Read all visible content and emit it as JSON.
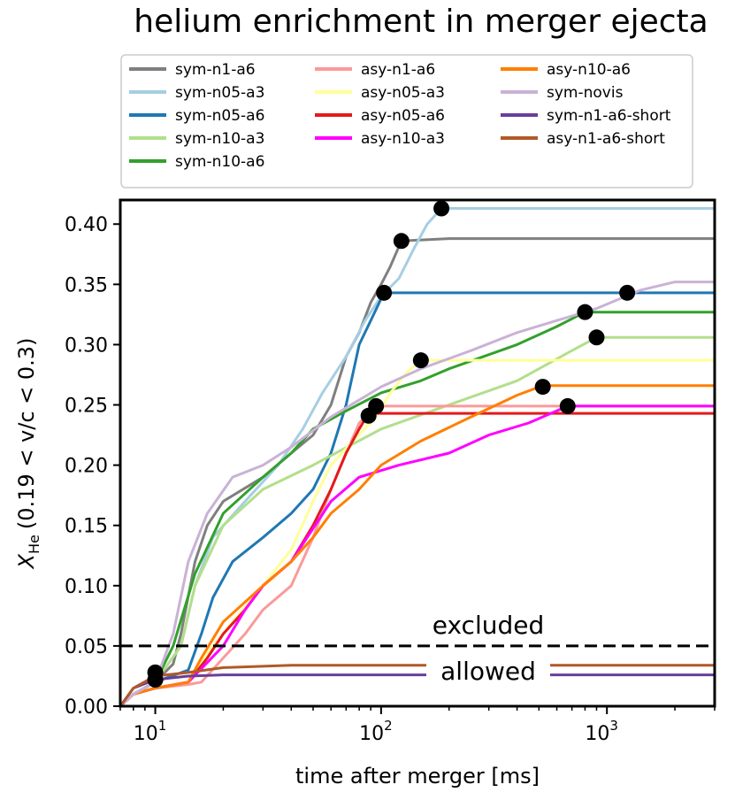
{
  "chart_data": {
    "type": "line",
    "title": "helium enrichment in merger ejecta",
    "xlabel": "time after merger [ms]",
    "ylabel_main": "X",
    "ylabel_sub": "He",
    "ylabel_rest": "(0.19 < v/c < 0.3)",
    "xscale": "log",
    "xlim": [
      7,
      3000
    ],
    "ylim": [
      0,
      0.42
    ],
    "xticks": [
      {
        "value": 10,
        "label": "10",
        "exp": "1"
      },
      {
        "value": 100,
        "label": "10",
        "exp": "2"
      },
      {
        "value": 1000,
        "label": "10",
        "exp": "3"
      }
    ],
    "yticks": [
      "0.00",
      "0.05",
      "0.10",
      "0.15",
      "0.20",
      "0.25",
      "0.30",
      "0.35",
      "0.40"
    ],
    "threshold": {
      "value": 0.05,
      "label_above": "excluded",
      "label_below": "allowed"
    },
    "legend_position": "above plot",
    "series": [
      {
        "name": "sym-n1-a6",
        "color": "#7f7f7f",
        "points": [
          [
            7,
            0
          ],
          [
            8,
            0.01
          ],
          [
            10,
            0.02
          ],
          [
            12,
            0.035
          ],
          [
            13,
            0.06
          ],
          [
            15,
            0.12
          ],
          [
            17,
            0.15
          ],
          [
            20,
            0.17
          ],
          [
            30,
            0.19
          ],
          [
            40,
            0.21
          ],
          [
            50,
            0.225
          ],
          [
            60,
            0.25
          ],
          [
            70,
            0.29
          ],
          [
            80,
            0.31
          ],
          [
            90,
            0.335
          ],
          [
            100,
            0.35
          ],
          [
            110,
            0.365
          ],
          [
            123,
            0.386
          ],
          [
            200,
            0.388
          ],
          [
            3000,
            0.388
          ]
        ],
        "marker": [
          123,
          0.386
        ]
      },
      {
        "name": "sym-n05-a3",
        "color": "#a6cee3",
        "points": [
          [
            7,
            0
          ],
          [
            8,
            0.01
          ],
          [
            10,
            0.02
          ],
          [
            13,
            0.05
          ],
          [
            15,
            0.1
          ],
          [
            18,
            0.14
          ],
          [
            25,
            0.17
          ],
          [
            35,
            0.2
          ],
          [
            45,
            0.23
          ],
          [
            55,
            0.26
          ],
          [
            70,
            0.29
          ],
          [
            85,
            0.32
          ],
          [
            100,
            0.34
          ],
          [
            120,
            0.355
          ],
          [
            140,
            0.38
          ],
          [
            160,
            0.4
          ],
          [
            185,
            0.413
          ],
          [
            3000,
            0.413
          ]
        ],
        "marker": [
          185,
          0.413
        ]
      },
      {
        "name": "sym-n05-a6",
        "color": "#1f78b4",
        "points": [
          [
            7,
            0
          ],
          [
            8,
            0.01
          ],
          [
            10,
            0.02
          ],
          [
            14,
            0.03
          ],
          [
            16,
            0.06
          ],
          [
            18,
            0.09
          ],
          [
            22,
            0.12
          ],
          [
            30,
            0.14
          ],
          [
            40,
            0.16
          ],
          [
            50,
            0.18
          ],
          [
            60,
            0.21
          ],
          [
            70,
            0.25
          ],
          [
            80,
            0.3
          ],
          [
            90,
            0.32
          ],
          [
            103,
            0.343
          ],
          [
            3000,
            0.343
          ]
        ],
        "marker": [
          103,
          0.343
        ]
      },
      {
        "name": "sym-n10-a3",
        "color": "#b2df8a",
        "points": [
          [
            7,
            0
          ],
          [
            8,
            0.01
          ],
          [
            10,
            0.02
          ],
          [
            13,
            0.05
          ],
          [
            15,
            0.1
          ],
          [
            20,
            0.15
          ],
          [
            30,
            0.18
          ],
          [
            50,
            0.2
          ],
          [
            100,
            0.23
          ],
          [
            200,
            0.25
          ],
          [
            400,
            0.27
          ],
          [
            700,
            0.295
          ],
          [
            900,
            0.306
          ],
          [
            3000,
            0.306
          ]
        ],
        "marker": [
          900,
          0.306
        ]
      },
      {
        "name": "sym-n10-a6",
        "color": "#33a02c",
        "points": [
          [
            7,
            0
          ],
          [
            8,
            0.01
          ],
          [
            10,
            0.02
          ],
          [
            12,
            0.05
          ],
          [
            15,
            0.11
          ],
          [
            20,
            0.16
          ],
          [
            30,
            0.19
          ],
          [
            40,
            0.21
          ],
          [
            50,
            0.23
          ],
          [
            70,
            0.245
          ],
          [
            100,
            0.26
          ],
          [
            150,
            0.27
          ],
          [
            200,
            0.28
          ],
          [
            400,
            0.3
          ],
          [
            600,
            0.315
          ],
          [
            800,
            0.327
          ],
          [
            3000,
            0.327
          ]
        ],
        "marker": [
          800,
          0.327
        ]
      },
      {
        "name": "asy-n1-a6",
        "color": "#fb9a99",
        "points": [
          [
            7,
            0
          ],
          [
            8,
            0.01
          ],
          [
            10,
            0.015
          ],
          [
            14,
            0.018
          ],
          [
            16,
            0.02
          ],
          [
            20,
            0.04
          ],
          [
            25,
            0.06
          ],
          [
            30,
            0.08
          ],
          [
            40,
            0.1
          ],
          [
            50,
            0.14
          ],
          [
            60,
            0.18
          ],
          [
            70,
            0.21
          ],
          [
            80,
            0.235
          ],
          [
            95,
            0.249
          ],
          [
            3000,
            0.249
          ]
        ],
        "marker": null
      },
      {
        "name": "asy-n05-a3",
        "color": "#ffff99",
        "points": [
          [
            7,
            0
          ],
          [
            8,
            0.01
          ],
          [
            10,
            0.015
          ],
          [
            14,
            0.02
          ],
          [
            18,
            0.05
          ],
          [
            22,
            0.07
          ],
          [
            30,
            0.1
          ],
          [
            40,
            0.13
          ],
          [
            50,
            0.17
          ],
          [
            60,
            0.2
          ],
          [
            75,
            0.22
          ],
          [
            95,
            0.24
          ],
          [
            110,
            0.26
          ],
          [
            130,
            0.277
          ],
          [
            150,
            0.287
          ],
          [
            3000,
            0.287
          ]
        ],
        "marker": [
          150,
          0.287
        ]
      },
      {
        "name": "asy-n05-a6",
        "color": "#e31a1c",
        "points": [
          [
            7,
            0
          ],
          [
            8,
            0.01
          ],
          [
            10,
            0.015
          ],
          [
            14,
            0.02
          ],
          [
            17,
            0.04
          ],
          [
            20,
            0.06
          ],
          [
            25,
            0.08
          ],
          [
            30,
            0.1
          ],
          [
            40,
            0.12
          ],
          [
            50,
            0.15
          ],
          [
            60,
            0.18
          ],
          [
            70,
            0.21
          ],
          [
            80,
            0.23
          ],
          [
            88,
            0.243
          ],
          [
            3000,
            0.243
          ]
        ],
        "marker": [
          88,
          0.241
        ]
      },
      {
        "name": "asy-n10-a3",
        "color": "#ff00ff",
        "points": [
          [
            7,
            0
          ],
          [
            8,
            0.01
          ],
          [
            10,
            0.015
          ],
          [
            14,
            0.02
          ],
          [
            20,
            0.05
          ],
          [
            25,
            0.08
          ],
          [
            30,
            0.1
          ],
          [
            40,
            0.12
          ],
          [
            60,
            0.17
          ],
          [
            80,
            0.19
          ],
          [
            120,
            0.2
          ],
          [
            200,
            0.21
          ],
          [
            300,
            0.225
          ],
          [
            450,
            0.235
          ],
          [
            600,
            0.245
          ],
          [
            670,
            0.249
          ],
          [
            3000,
            0.249
          ]
        ],
        "marker": [
          670,
          0.249
        ]
      },
      {
        "name": "asy-n10-a6",
        "color": "#ff7f00",
        "points": [
          [
            7,
            0
          ],
          [
            8,
            0.01
          ],
          [
            10,
            0.015
          ],
          [
            14,
            0.02
          ],
          [
            16,
            0.04
          ],
          [
            20,
            0.07
          ],
          [
            30,
            0.1
          ],
          [
            40,
            0.12
          ],
          [
            50,
            0.14
          ],
          [
            60,
            0.16
          ],
          [
            80,
            0.18
          ],
          [
            100,
            0.2
          ],
          [
            150,
            0.22
          ],
          [
            250,
            0.24
          ],
          [
            400,
            0.258
          ],
          [
            520,
            0.266
          ],
          [
            3000,
            0.266
          ]
        ],
        "marker": [
          520,
          0.265
        ]
      },
      {
        "name": "sym-novis",
        "color": "#cab2d6",
        "points": [
          [
            7,
            0
          ],
          [
            8,
            0.01
          ],
          [
            10,
            0.02
          ],
          [
            12,
            0.06
          ],
          [
            14,
            0.12
          ],
          [
            17,
            0.16
          ],
          [
            22,
            0.19
          ],
          [
            30,
            0.2
          ],
          [
            40,
            0.215
          ],
          [
            60,
            0.24
          ],
          [
            100,
            0.265
          ],
          [
            150,
            0.28
          ],
          [
            250,
            0.295
          ],
          [
            400,
            0.31
          ],
          [
            600,
            0.32
          ],
          [
            900,
            0.33
          ],
          [
            1400,
            0.345
          ],
          [
            2000,
            0.352
          ],
          [
            3000,
            0.352
          ]
        ],
        "marker": [
          1230,
          0.343
        ]
      },
      {
        "name": "sym-n1-a6-short",
        "color": "#6a3d9a",
        "points": [
          [
            7,
            0
          ],
          [
            8,
            0.015
          ],
          [
            10,
            0.022
          ],
          [
            14,
            0.025
          ],
          [
            20,
            0.026
          ],
          [
            3000,
            0.026
          ]
        ],
        "marker": [
          10,
          0.028
        ]
      },
      {
        "name": "asy-n1-a6-short",
        "color": "#b15928",
        "points": [
          [
            7,
            0
          ],
          [
            8,
            0.015
          ],
          [
            10,
            0.025
          ],
          [
            14,
            0.028
          ],
          [
            20,
            0.032
          ],
          [
            40,
            0.034
          ],
          [
            3000,
            0.034
          ]
        ],
        "marker": [
          10,
          0.022
        ]
      }
    ],
    "extra_markers": [
      [
        95,
        0.249
      ]
    ]
  }
}
